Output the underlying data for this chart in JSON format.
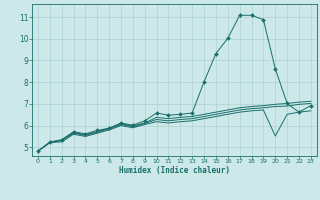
{
  "title": "",
  "xlabel": "Humidex (Indice chaleur)",
  "ylabel": "",
  "bg_color": "#cce8e8",
  "line_color": "#1a6e6a",
  "grid_color": "#a8cccc",
  "xlim": [
    -0.5,
    23.5
  ],
  "ylim": [
    4.6,
    11.6
  ],
  "xticks": [
    0,
    1,
    2,
    3,
    4,
    5,
    6,
    7,
    8,
    9,
    10,
    11,
    12,
    13,
    14,
    15,
    16,
    17,
    18,
    19,
    20,
    21,
    22,
    23
  ],
  "yticks": [
    5,
    6,
    7,
    8,
    9,
    10,
    11
  ],
  "lines": [
    {
      "x": [
        0,
        1,
        2,
        3,
        4,
        5,
        6,
        7,
        8,
        9,
        10,
        11,
        12,
        13,
        14,
        15,
        16,
        17,
        18,
        19,
        20,
        21,
        22,
        23
      ],
      "y": [
        4.82,
        5.25,
        5.35,
        5.72,
        5.62,
        5.78,
        5.88,
        6.12,
        6.02,
        6.22,
        6.58,
        6.48,
        6.52,
        6.58,
        8.02,
        9.32,
        10.02,
        11.08,
        11.08,
        10.88,
        8.62,
        7.02,
        6.62,
        6.92
      ],
      "marker": "D",
      "ms": 2.0
    },
    {
      "x": [
        0,
        1,
        2,
        3,
        4,
        5,
        6,
        7,
        8,
        9,
        10,
        11,
        12,
        13,
        14,
        15,
        16,
        17,
        18,
        19,
        20,
        21,
        22,
        23
      ],
      "y": [
        4.82,
        5.22,
        5.32,
        5.68,
        5.58,
        5.72,
        5.88,
        6.08,
        5.98,
        6.12,
        6.38,
        6.32,
        6.38,
        6.42,
        6.52,
        6.62,
        6.72,
        6.82,
        6.88,
        6.92,
        6.98,
        7.02,
        7.08,
        7.12
      ],
      "marker": null,
      "ms": 0
    },
    {
      "x": [
        0,
        1,
        2,
        3,
        4,
        5,
        6,
        7,
        8,
        9,
        10,
        11,
        12,
        13,
        14,
        15,
        16,
        17,
        18,
        19,
        20,
        21,
        22,
        23
      ],
      "y": [
        4.82,
        5.22,
        5.32,
        5.65,
        5.55,
        5.7,
        5.85,
        6.05,
        5.95,
        6.1,
        6.28,
        6.22,
        6.28,
        6.32,
        6.42,
        6.52,
        6.62,
        6.72,
        6.78,
        6.82,
        6.88,
        6.9,
        6.98,
        7.02
      ],
      "marker": null,
      "ms": 0
    },
    {
      "x": [
        0,
        1,
        2,
        3,
        4,
        5,
        6,
        7,
        8,
        9,
        10,
        11,
        12,
        13,
        14,
        15,
        16,
        17,
        18,
        19,
        20,
        21,
        22,
        23
      ],
      "y": [
        4.82,
        5.22,
        5.25,
        5.6,
        5.5,
        5.65,
        5.8,
        6.0,
        5.9,
        6.05,
        6.18,
        6.12,
        6.18,
        6.22,
        6.32,
        6.42,
        6.52,
        6.62,
        6.68,
        6.72,
        5.52,
        6.52,
        6.62,
        6.68
      ],
      "marker": null,
      "ms": 0
    }
  ]
}
